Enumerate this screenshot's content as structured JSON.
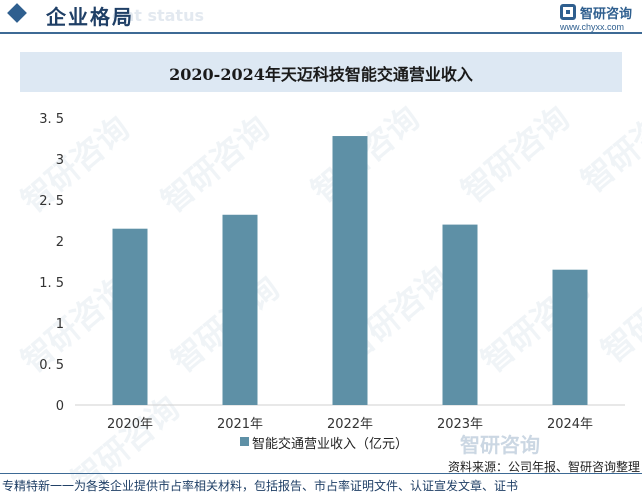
{
  "header": {
    "title": "企业格局",
    "title_en": "ent status",
    "logo_name": "智研咨询",
    "logo_url": "www.chyxx.com"
  },
  "chart_data": {
    "type": "bar",
    "title": "2020-2024年天迈科技智能交通营业收入",
    "categories": [
      "2020年",
      "2021年",
      "2022年",
      "2023年",
      "2024年"
    ],
    "series": [
      {
        "name": "智能交通营业收入（亿元）",
        "values": [
          2.15,
          2.32,
          3.28,
          2.2,
          1.65
        ],
        "color": "#5e90a6"
      }
    ],
    "y_ticks": [
      "0",
      "0. 5",
      "1",
      "1. 5",
      "2",
      "2. 5",
      "3",
      "3. 5"
    ],
    "ylim": [
      0,
      3.5
    ],
    "grid": false,
    "legend_position": "bottom"
  },
  "watermark": {
    "text": "智研咨询"
  },
  "bottom_logo": "智研咨询",
  "source": "资料来源：公司年报、智研咨询整理",
  "footer": "专精特新一一为各类企业提供市占率相关材料，包括报告、市占率证明文件、认证宣发文章、证书"
}
